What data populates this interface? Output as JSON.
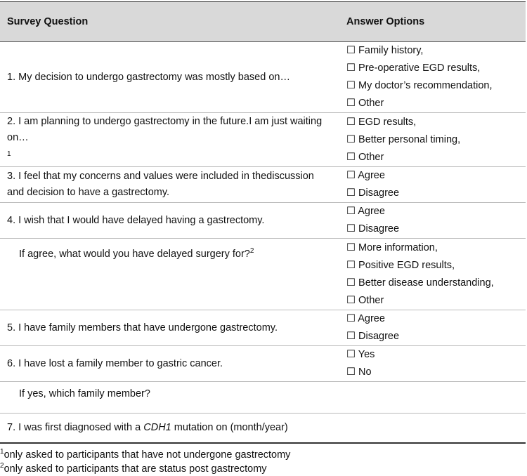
{
  "table": {
    "header": [
      "Survey Question",
      "Answer Options"
    ],
    "rows": [
      {
        "question": [
          "1. My decision to undergo gastrectomy was mostly based on…"
        ],
        "options": [
          "☐ Family history,",
          "☐ Pre-operative EGD results,",
          "☐ My doctor’s recommendation,",
          "☐ Other"
        ]
      },
      {
        "question": [
          "2. I am planning to undergo gastrectomy in the future.",
          "I am just waiting on…",
          "1"
        ],
        "options": [
          "☐ EGD results,",
          "☐ Better personal timing,",
          "☐ Other"
        ]
      },
      {
        "question": [
          "3. I feel that my concerns and values were included in the",
          "discussion and decision to have a gastrectomy."
        ],
        "options": [
          "☐ Agree",
          "☐ Disagree"
        ]
      },
      {
        "question": [
          "4. I wish that I would have delayed having a gastrectomy."
        ],
        "options": [
          "☐ Agree",
          "☐ Disagree"
        ]
      },
      {
        "question": [
          "If agree, what would you have delayed surgery for?",
          "2"
        ],
        "options": [
          "☐ More information,",
          "☐ Positive EGD results,",
          "☐ Better disease understanding,",
          "☐ Other"
        ]
      },
      {
        "question": [
          "5. I have family members that have undergone gastrectomy."
        ],
        "options": [
          "☐ Agree",
          "☐ Disagree"
        ]
      },
      {
        "question": [
          "6. I have lost a family member to gastric cancer."
        ],
        "options": [
          "☐ Yes",
          "☐ No"
        ]
      },
      {
        "question": [
          "If yes, which family member?"
        ],
        "options": []
      },
      {
        "question": [
          "7. I was first diagnosed with a ",
          "CDH1",
          " mutation on (month/year)"
        ],
        "options": []
      }
    ]
  },
  "footnotes": [
    {
      "mark": "1",
      "text": "only asked to participants that have not undergone gastrectomy"
    },
    {
      "mark": "2",
      "text": "only asked to participants that are status post gastrectomy"
    }
  ]
}
